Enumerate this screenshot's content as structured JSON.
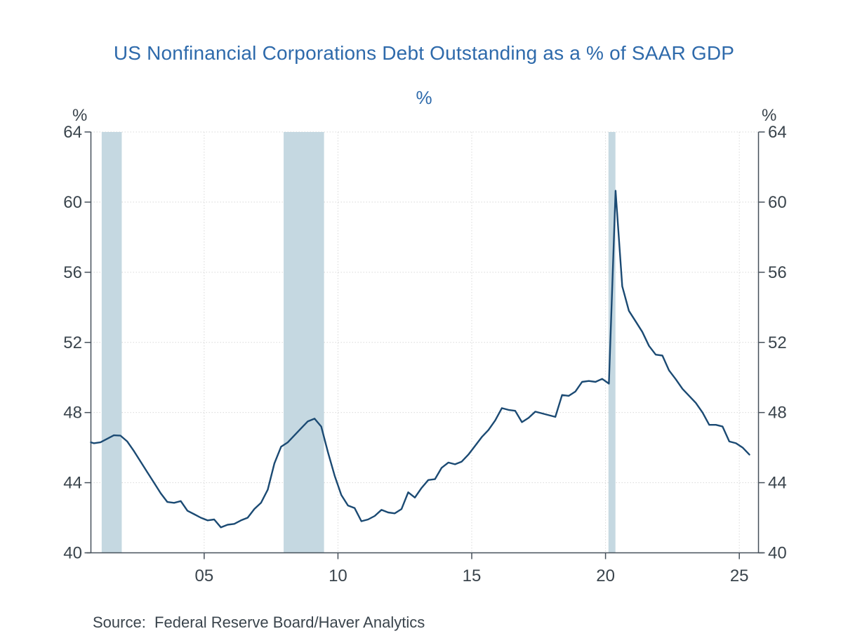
{
  "header": {
    "title": "US Nonfinancial Corporations Debt Outstanding as a % of SAAR GDP",
    "subtitle": "%"
  },
  "footer": {
    "source": "Source:  Federal Reserve Board/Haver Analytics"
  },
  "colors": {
    "title_text": "#2e6aab",
    "series_line": "#1b4a73",
    "recession_band": "#c5d8e1",
    "gridline": "#d9d9d9",
    "axis": "#46505a",
    "tick_text": "#3a444c",
    "source_text": "#3a444c",
    "background": "#ffffff"
  },
  "chart_data": {
    "type": "line",
    "title": "US Nonfinancial Corporations Debt Outstanding as a % of SAAR GDP",
    "series_name": "US nonfinancial corporations debt outstanding as a % of SAAR GDP",
    "y_axis_unit": "%",
    "frequency": "quarterly",
    "start_quarter": "2000Q3",
    "end_quarter": "2025Q2",
    "x_start_year": 2000.625,
    "x_step_years": 0.25,
    "values": [
      46.3,
      46.25,
      46.3,
      46.5,
      46.7,
      46.68,
      46.35,
      45.8,
      45.2,
      44.6,
      44.0,
      43.4,
      42.9,
      42.85,
      42.95,
      42.4,
      42.2,
      42.0,
      41.85,
      41.9,
      41.45,
      41.6,
      41.65,
      41.85,
      42.0,
      42.5,
      42.85,
      43.6,
      45.1,
      46.05,
      46.3,
      46.7,
      47.1,
      47.5,
      47.65,
      47.2,
      45.75,
      44.4,
      43.3,
      42.7,
      42.55,
      41.8,
      41.9,
      42.1,
      42.45,
      42.3,
      42.25,
      42.5,
      43.45,
      43.15,
      43.7,
      44.15,
      44.2,
      44.85,
      45.15,
      45.05,
      45.2,
      45.6,
      46.1,
      46.6,
      47.0,
      47.55,
      48.25,
      48.15,
      48.1,
      47.45,
      47.7,
      48.05,
      47.95,
      47.85,
      47.75,
      49.0,
      48.95,
      49.2,
      49.75,
      49.8,
      49.75,
      49.92,
      49.65,
      60.65,
      55.2,
      53.8,
      53.2,
      52.6,
      51.8,
      51.3,
      51.25,
      50.4,
      49.9,
      49.35,
      48.95,
      48.55,
      48.0,
      47.3,
      47.3,
      47.2,
      46.35,
      46.25,
      46.0,
      45.6
    ],
    "peak_value": 60.65,
    "peak_quarter": "2020Q2",
    "y_ticks": [
      40,
      44,
      48,
      52,
      56,
      60,
      64
    ],
    "y_tick_labels": [
      "40",
      "44",
      "48",
      "52",
      "56",
      "60",
      "64"
    ],
    "ylim": [
      40,
      64
    ],
    "x_ticks": [
      {
        "year": 2005,
        "label": "05"
      },
      {
        "year": 2010,
        "label": "10"
      },
      {
        "year": 2015,
        "label": "15"
      },
      {
        "year": 2020,
        "label": "20"
      },
      {
        "year": 2025,
        "label": "25"
      }
    ],
    "x_domain": [
      2000.767,
      2025.717
    ],
    "recession_bands": [
      [
        2001.17,
        2001.92
      ],
      [
        2007.97,
        2009.48
      ],
      [
        2020.11,
        2020.37
      ]
    ],
    "grid": "dashed",
    "legend": "none"
  }
}
